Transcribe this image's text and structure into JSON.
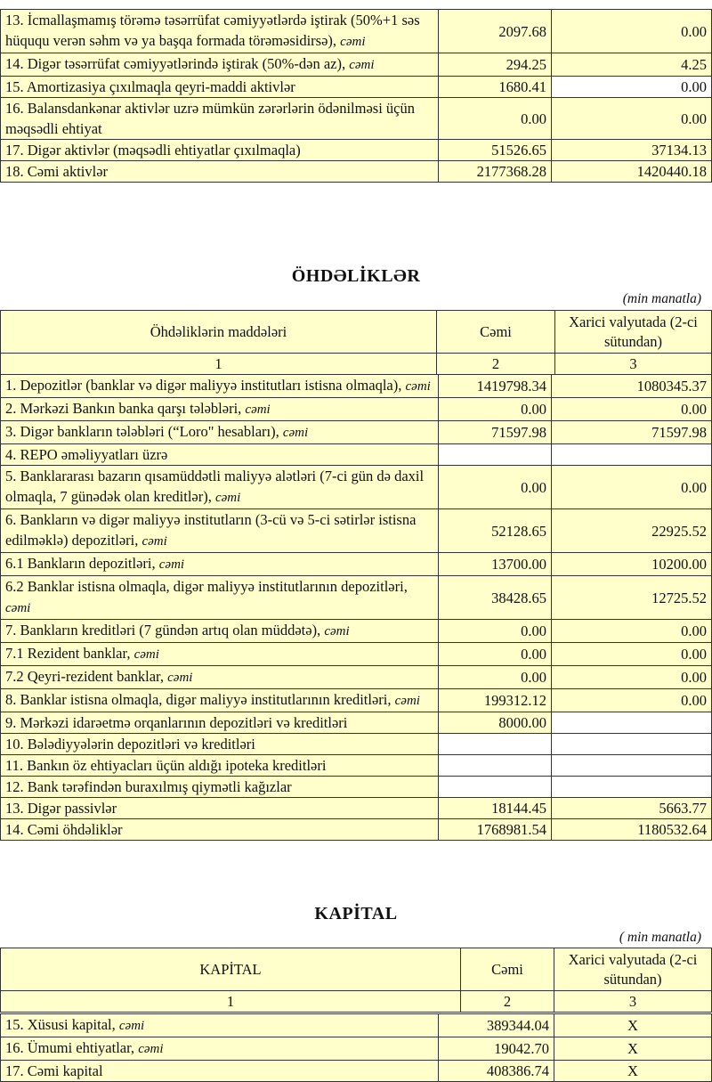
{
  "colors": {
    "highlight": "#ffffcc",
    "blank_cell": "#ffffff",
    "border": "#333333"
  },
  "assets": {
    "rows": [
      {
        "label": "13. İcmallaşmamış törəmə təsərrüfat cəmiyyətlərdə iştirak (50%+1 səs hüququ verən səhm və ya başqa formada törəməsidirsə), ",
        "suffix": "cəmi",
        "total": "2097.68",
        "foreign": "0.00"
      },
      {
        "label": "14. Digər təsərrüfat cəmiyyətlərində iştirak (50%-dən az), ",
        "suffix": "cəmi",
        "total": "294.25",
        "foreign": "4.25"
      },
      {
        "label": "15. Amortizasiya çıxılmaqla qeyri-maddi aktivlər",
        "suffix": "",
        "total": "1680.41",
        "foreign": "0.00",
        "white_foreign": true
      },
      {
        "label": "16. Balansdankənar aktivlər uzrə mümkün zərərlərin ödənilməsi üçün məqsədli ehtiyat",
        "suffix": "",
        "total": "0.00",
        "foreign": "0.00"
      },
      {
        "label": "17. Digər aktivlər (məqsədli ehtiyatlar çıxılmaqla)",
        "suffix": "",
        "total": "51526.65",
        "foreign": "37134.13"
      },
      {
        "label": "18. Cəmi aktivlər",
        "suffix": "",
        "total": "2177368.28",
        "foreign": "1420440.18"
      }
    ]
  },
  "liabilities": {
    "title": "ÖHDƏLİKLƏR",
    "unit": "(min manatla)",
    "headers": [
      "Öhdəliklərin maddələri",
      "Cəmi",
      "Xarici valyutada (2-ci sütundan)"
    ],
    "col_numbers": [
      "1",
      "2",
      "3"
    ],
    "rows": [
      {
        "label": "1. Depozitlər (banklar və digər maliyyə institutları istisna olmaqla), ",
        "suffix": "cəmi",
        "total": "1419798.34",
        "foreign": "1080345.37"
      },
      {
        "label": "2. Mərkəzi Bankın banka qarşı tələbləri, ",
        "suffix": "cəmi",
        "total": "0.00",
        "foreign": "0.00"
      },
      {
        "label": "3. Digər bankların tələbləri (“Loro\" hesabları), ",
        "suffix": "cəmi",
        "total": "71597.98",
        "foreign": "71597.98"
      },
      {
        "label": "4. REPO əməliyyatları  üzrə",
        "suffix": "",
        "total": "",
        "foreign": "",
        "white_total": true,
        "white_foreign": true
      },
      {
        "label": "5. Banklararası bazarın qısamüddətli maliyyə alətləri (7-ci gün də daxil olmaqla, 7 günədək olan kreditlər), ",
        "suffix": "cəmi",
        "total": "0.00",
        "foreign": "0.00"
      },
      {
        "label": "6. Bankların və digər maliyyə institutların (3-cü və 5-ci sətirlər istisna edilməklə) depozitləri, ",
        "suffix": "cəmi",
        "total": "52128.65",
        "foreign": "22925.52"
      },
      {
        "label": "6.1  Bankların depozitləri, ",
        "suffix": "cəmi",
        "total": "13700.00",
        "foreign": "10200.00"
      },
      {
        "label": "6.2 Banklar istisna olmaqla, digər maliyyə institutlarının depozitləri, ",
        "suffix": "cəmi",
        "total": "38428.65",
        "foreign": "12725.52"
      },
      {
        "label": "7. Bankların kreditləri (7 gündən artıq olan müddətə), ",
        "suffix": "cəmi",
        "total": "0.00",
        "foreign": "0.00"
      },
      {
        "label": "7.1 Rezident banklar, ",
        "suffix": "cəmi",
        "total": "0.00",
        "foreign": "0.00"
      },
      {
        "label": "7.2 Qeyri-rezident banklar, ",
        "suffix": "cəmi",
        "total": "0.00",
        "foreign": "0.00"
      },
      {
        "label": "8. Banklar istisna olmaqla, digər maliyyə institutlarının kreditləri, ",
        "suffix": "cəmi",
        "total": "199312.12",
        "foreign": "0.00"
      },
      {
        "label": "9. Mərkəzi idarəetmə orqanlarının depozitləri və kreditləri",
        "suffix": "",
        "total": "8000.00",
        "foreign": "",
        "white_foreign": true
      },
      {
        "label": "10. Bələdiyyələrin depozitləri və kreditləri",
        "suffix": "",
        "total": "",
        "foreign": "",
        "white_total": true,
        "white_foreign": true
      },
      {
        "label": "11. Bankın öz ehtiyacları üçün aldığı ipoteka kreditləri",
        "suffix": "",
        "total": "",
        "foreign": "",
        "white_total": true,
        "white_foreign": true
      },
      {
        "label": "12. Bank tərəfindən buraxılmış qiymətli kağızlar",
        "suffix": "",
        "total": "",
        "foreign": "",
        "white_total": true,
        "white_foreign": true
      },
      {
        "label": "13. Digər passivlər",
        "suffix": "",
        "total": "18144.45",
        "foreign": "5663.77"
      },
      {
        "label": "14. Cəmi öhdəliklər",
        "suffix": "",
        "total": "1768981.54",
        "foreign": "1180532.64"
      }
    ]
  },
  "capital": {
    "title": "KAPİTAL",
    "unit": "( min manatla)",
    "headers": [
      "KAPİTAL",
      "Cəmi",
      "Xarici valyutada (2-ci sütundan)"
    ],
    "col_numbers": [
      "1",
      "2",
      "3"
    ],
    "rows": [
      {
        "label": "15. Xüsusi kapital, ",
        "suffix": "cəmi",
        "total": "389344.04",
        "foreign": "X"
      },
      {
        "label": "16. Ümumi ehtiyatlar, ",
        "suffix": "cəmi",
        "total": "19042.70",
        "foreign": "X"
      },
      {
        "label": "17. Cəmi kapital",
        "suffix": "",
        "total": "408386.74",
        "foreign": "X"
      }
    ]
  }
}
